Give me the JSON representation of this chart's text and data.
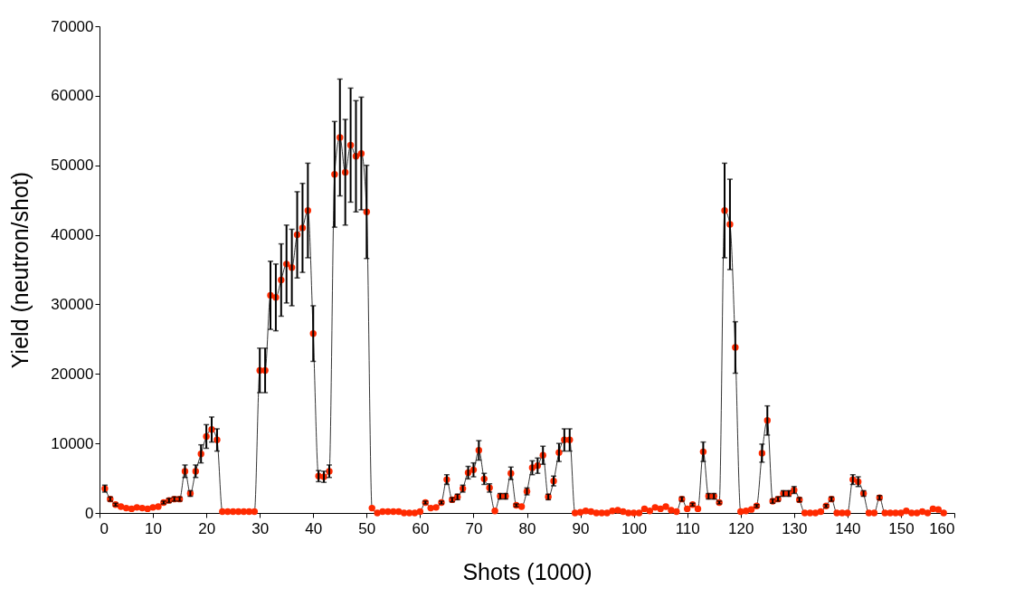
{
  "chart_data": {
    "type": "line",
    "xlabel": "Shots (1000)",
    "ylabel": "Yield (neutron/shot)",
    "x": [
      1,
      2,
      3,
      4,
      5,
      6,
      7,
      8,
      9,
      10,
      11,
      12,
      13,
      14,
      15,
      16,
      17,
      18,
      19,
      20,
      21,
      22,
      23,
      24,
      25,
      26,
      27,
      28,
      29,
      30,
      31,
      32,
      33,
      34,
      35,
      36,
      37,
      38,
      39,
      40,
      41,
      42,
      43,
      44,
      45,
      46,
      47,
      48,
      49,
      50,
      51,
      52,
      53,
      54,
      55,
      56,
      57,
      58,
      59,
      60,
      61,
      62,
      63,
      64,
      65,
      66,
      67,
      68,
      69,
      70,
      71,
      72,
      73,
      74,
      75,
      76,
      77,
      78,
      79,
      80,
      81,
      82,
      83,
      84,
      85,
      86,
      87,
      88,
      89,
      90,
      91,
      92,
      93,
      94,
      95,
      96,
      97,
      98,
      99,
      100,
      101,
      102,
      103,
      104,
      105,
      106,
      107,
      108,
      109,
      110,
      111,
      112,
      113,
      114,
      115,
      116,
      117,
      118,
      119,
      120,
      121,
      122,
      123,
      124,
      125,
      126,
      127,
      128,
      129,
      130,
      131,
      132,
      133,
      134,
      135,
      136,
      137,
      138,
      139,
      140,
      141,
      142,
      143,
      144,
      145,
      146,
      147,
      148,
      149,
      150,
      151,
      152,
      153,
      154,
      155,
      156,
      157,
      158
    ],
    "values": [
      3500,
      2000,
      1200,
      900,
      700,
      600,
      800,
      700,
      600,
      800,
      900,
      1500,
      1800,
      2000,
      2000,
      6000,
      2800,
      6000,
      8500,
      11000,
      12000,
      10500,
      200,
      200,
      200,
      200,
      200,
      200,
      200,
      20500,
      20500,
      31300,
      31000,
      33500,
      35800,
      35300,
      40000,
      41000,
      43500,
      25800,
      5300,
      5200,
      6000,
      48700,
      54000,
      49000,
      52900,
      51300,
      51700,
      43300,
      700,
      0,
      200,
      200,
      200,
      200,
      0,
      0,
      0,
      200,
      1500,
      700,
      800,
      1500,
      4800,
      1900,
      2300,
      3500,
      5800,
      6200,
      9000,
      4900,
      3600,
      300,
      2400,
      2400,
      5700,
      1100,
      900,
      3100,
      6500,
      6800,
      8300,
      2300,
      4600,
      8700,
      10500,
      10500,
      0,
      100,
      300,
      200,
      0,
      0,
      0,
      300,
      400,
      200,
      0,
      0,
      0,
      600,
      300,
      800,
      600,
      900,
      400,
      200,
      2000,
      600,
      1200,
      600,
      8800,
      2400,
      2400,
      1500,
      43500,
      41500,
      23800,
      200,
      300,
      500,
      1000,
      8600,
      13300,
      1700,
      2000,
      2800,
      2800,
      3300,
      1900,
      0,
      0,
      0,
      200,
      1000,
      2000,
      0,
      0,
      0,
      4800,
      4500,
      2800,
      0,
      0,
      2200,
      0,
      0,
      0,
      0,
      300,
      0,
      0,
      200,
      0,
      600,
      500,
      0
    ],
    "errors": [
      500,
      300,
      200,
      null,
      null,
      null,
      null,
      null,
      null,
      null,
      null,
      200,
      300,
      300,
      300,
      900,
      400,
      900,
      1300,
      1700,
      1800,
      1600,
      null,
      null,
      null,
      null,
      null,
      null,
      null,
      3200,
      3200,
      4900,
      4800,
      5200,
      5600,
      5500,
      6200,
      6400,
      6800,
      4000,
      800,
      800,
      900,
      7600,
      8400,
      7600,
      8200,
      8000,
      8100,
      6700,
      null,
      null,
      null,
      null,
      null,
      null,
      null,
      null,
      null,
      null,
      200,
      null,
      null,
      200,
      700,
      300,
      400,
      500,
      900,
      1000,
      1400,
      800,
      600,
      null,
      400,
      400,
      900,
      200,
      null,
      500,
      1000,
      1100,
      1300,
      400,
      700,
      1300,
      1600,
      1600,
      null,
      null,
      null,
      null,
      null,
      null,
      null,
      null,
      null,
      null,
      null,
      null,
      null,
      null,
      null,
      null,
      null,
      null,
      null,
      null,
      300,
      null,
      200,
      null,
      1400,
      400,
      400,
      200,
      6800,
      6500,
      3700,
      null,
      null,
      null,
      200,
      1300,
      2100,
      300,
      300,
      400,
      400,
      500,
      300,
      null,
      null,
      null,
      null,
      200,
      300,
      null,
      null,
      null,
      700,
      700,
      400,
      null,
      null,
      300,
      null,
      null,
      null,
      null,
      null,
      null,
      null,
      null,
      null,
      null,
      null,
      null
    ],
    "color": "#ff2a00",
    "marker": "circle",
    "line_style": "solid",
    "xlim": [
      0,
      160
    ],
    "xticks": [
      0,
      10,
      20,
      30,
      40,
      50,
      60,
      70,
      80,
      90,
      100,
      110,
      120,
      130,
      140,
      150,
      160
    ],
    "ylim": [
      0,
      70000
    ],
    "yticks": [
      0,
      10000,
      20000,
      30000,
      40000,
      50000,
      60000,
      70000
    ],
    "grid": false
  }
}
